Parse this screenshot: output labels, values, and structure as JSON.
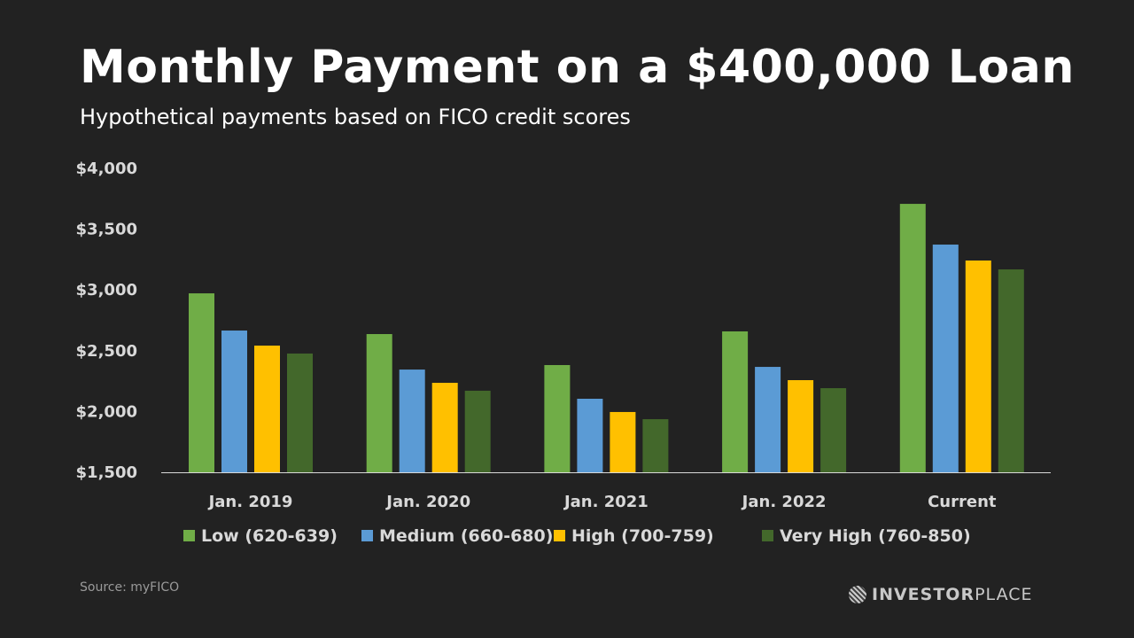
{
  "chart_data": {
    "type": "bar",
    "title": "Monthly Payment on a $400,000 Loan",
    "subtitle": "Hypothetical payments based on FICO credit scores",
    "categories": [
      "Jan. 2019",
      "Jan. 2020",
      "Jan. 2021",
      "Jan. 2022",
      "Current"
    ],
    "series": [
      {
        "name": "Low (620-639)",
        "color": "#70ad47",
        "values": [
          2972,
          2637,
          2382,
          2659,
          3708
        ]
      },
      {
        "name": "Medium (660-680)",
        "color": "#5b9bd5",
        "values": [
          2666,
          2345,
          2105,
          2367,
          3373
        ]
      },
      {
        "name": "High (700-759)",
        "color": "#ffc000",
        "values": [
          2542,
          2236,
          1996,
          2258,
          3242
        ]
      },
      {
        "name": "Very High (760-850)",
        "color": "#43682b",
        "values": [
          2477,
          2171,
          1937,
          2192,
          3169
        ]
      }
    ],
    "ylim": [
      1500,
      4000
    ],
    "yticks": [
      "$1,500",
      "$2,000",
      "$2,500",
      "$3,000",
      "$3,500",
      "$4,000"
    ],
    "ytick_values": [
      1500,
      2000,
      2500,
      3000,
      3500,
      4000
    ],
    "grid": false,
    "legend_position": "bottom",
    "xlabel": "",
    "ylabel": ""
  },
  "footer": {
    "source": "Source: myFICO",
    "logo_bold": "INVESTOR",
    "logo_light": "PLACE"
  }
}
